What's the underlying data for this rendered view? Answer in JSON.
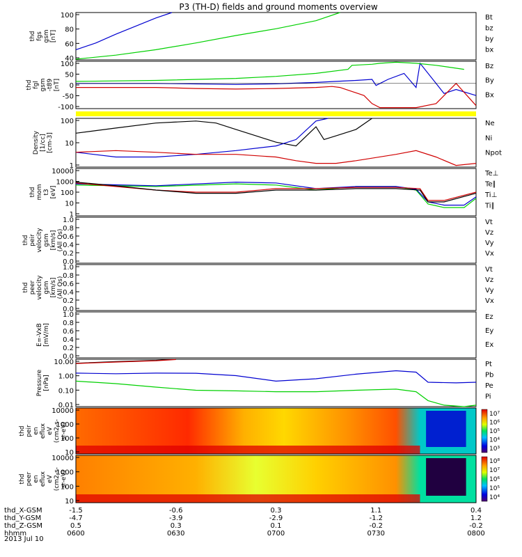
{
  "title": "P3 (TH-D) fields and ground moments overview",
  "date_label": "2013 Jul 10",
  "colors": {
    "black": "#000000",
    "red": "#d00000",
    "green": "#00d000",
    "blue": "#0000d0",
    "yellow": "#ffff00"
  },
  "orbit_rows": [
    {
      "label": "thd_X-GSM",
      "values": [
        "-1.5",
        "-0.6",
        "0.3",
        "1.1",
        "0.4"
      ]
    },
    {
      "label": "thd_Y-GSM",
      "values": [
        "-4.7",
        "-3.9",
        "-2.9",
        "-1.2",
        "1.2"
      ]
    },
    {
      "label": "thd_Z-GSM",
      "values": [
        "0.5",
        "0.3",
        "0.1",
        "-0.2",
        "-0.2"
      ]
    },
    {
      "label": "hhmm",
      "values": [
        "0600",
        "0630",
        "0700",
        "0730",
        "0800"
      ]
    }
  ],
  "chart_data": [
    {
      "id": "fgs",
      "type": "line",
      "ylabel": [
        "thd",
        "fgs",
        "gsm",
        "[nT]"
      ],
      "yticks": [
        "100",
        "80",
        "60",
        "40"
      ],
      "ylim": [
        30,
        100
      ],
      "legend": [
        {
          "name": "Bt",
          "color": "black"
        },
        {
          "name": "bz",
          "color": "red"
        },
        {
          "name": "by",
          "color": "green"
        },
        {
          "name": "bx",
          "color": "blue"
        }
      ],
      "series": [
        {
          "name": "bx",
          "color": "blue",
          "x": [
            0,
            0.05,
            0.1,
            0.15,
            0.2,
            0.24
          ],
          "y": [
            45,
            55,
            68,
            80,
            92,
            100
          ]
        },
        {
          "name": "by",
          "color": "green",
          "x": [
            0,
            0.1,
            0.2,
            0.3,
            0.4,
            0.5,
            0.6,
            0.66
          ],
          "y": [
            31,
            37,
            45,
            55,
            66,
            76,
            88,
            100
          ]
        }
      ]
    },
    {
      "id": "fgl",
      "type": "line",
      "ylabel": [
        "thd",
        "fgl",
        "gsm",
        "-t89",
        "[nT]"
      ],
      "yticks": [
        "100",
        "50",
        "0",
        "-50",
        "-100"
      ],
      "ylim": [
        -125,
        110
      ],
      "legend": [
        {
          "name": "Bz",
          "color": "red"
        },
        {
          "name": "By",
          "color": "green"
        },
        {
          "name": "Bx",
          "color": "blue"
        }
      ],
      "series": [
        {
          "name": "Bx",
          "color": "blue",
          "x": [
            0,
            0.2,
            0.4,
            0.5,
            0.6,
            0.65,
            0.7,
            0.74,
            0.75,
            0.78,
            0.82,
            0.85,
            0.86,
            0.9,
            0.92,
            0.95,
            1.0
          ],
          "y": [
            0,
            0,
            -5,
            -2,
            5,
            10,
            15,
            20,
            -10,
            20,
            50,
            -20,
            100,
            0,
            -50,
            -30,
            -60
          ]
        },
        {
          "name": "By",
          "color": "green",
          "x": [
            0,
            0.2,
            0.4,
            0.5,
            0.6,
            0.68,
            0.69,
            0.74,
            0.76,
            0.8,
            0.85,
            0.9,
            0.97
          ],
          "y": [
            10,
            15,
            25,
            35,
            50,
            70,
            90,
            95,
            100,
            105,
            100,
            90,
            70
          ]
        },
        {
          "name": "Bz",
          "color": "red",
          "x": [
            0,
            0.2,
            0.3,
            0.4,
            0.5,
            0.6,
            0.64,
            0.66,
            0.72,
            0.74,
            0.76,
            0.8,
            0.85,
            0.9,
            0.95,
            1.0
          ],
          "y": [
            -20,
            -20,
            -25,
            -28,
            -25,
            -20,
            -15,
            -20,
            -60,
            -100,
            -120,
            -120,
            -120,
            -100,
            0,
            -110
          ]
        }
      ]
    },
    {
      "id": "density",
      "type": "line",
      "log": true,
      "ylabel": [
        "Density",
        "[1/cc]",
        "[cm-3]"
      ],
      "yticks": [
        "100",
        "10",
        "1"
      ],
      "ylim": [
        1,
        200
      ],
      "legend": [
        {
          "name": "Ne",
          "color": "red"
        },
        {
          "name": "Ni",
          "color": "black"
        },
        {
          "name": "Npot",
          "color": "blue"
        }
      ],
      "series": [
        {
          "name": "Ni",
          "color": "black",
          "x": [
            0,
            0.1,
            0.2,
            0.3,
            0.35,
            0.4,
            0.45,
            0.5,
            0.55,
            0.6,
            0.62,
            0.65,
            0.7,
            0.74
          ],
          "y": [
            40,
            70,
            120,
            150,
            120,
            60,
            30,
            15,
            10,
            80,
            20,
            30,
            60,
            200
          ]
        },
        {
          "name": "Npot",
          "color": "blue",
          "x": [
            0,
            0.1,
            0.2,
            0.3,
            0.4,
            0.5,
            0.55,
            0.6,
            0.63
          ],
          "y": [
            5,
            3,
            3,
            4,
            6,
            10,
            20,
            150,
            200
          ]
        },
        {
          "name": "Ne",
          "color": "red",
          "x": [
            0,
            0.1,
            0.2,
            0.3,
            0.4,
            0.5,
            0.55,
            0.6,
            0.65,
            0.7,
            0.8,
            0.85,
            0.9,
            0.95,
            1.0
          ],
          "y": [
            5,
            6,
            5,
            4,
            4,
            3,
            2,
            1.5,
            1.5,
            2,
            4,
            6,
            3,
            1.2,
            1.5
          ]
        }
      ]
    },
    {
      "id": "temp",
      "type": "line",
      "log": true,
      "ylabel": [
        "thd",
        "mom",
        "t3",
        "[eV]"
      ],
      "yticks": [
        "10000",
        "1000",
        "100",
        "10",
        "1"
      ],
      "ylim": [
        1,
        10000
      ],
      "legend": [
        {
          "name": "Te⊥",
          "color": "red"
        },
        {
          "name": "Te∥",
          "color": "black"
        },
        {
          "name": "Ti⊥",
          "color": "blue"
        },
        {
          "name": "Ti∥",
          "color": "green"
        }
      ],
      "series": [
        {
          "name": "Ti∥",
          "color": "green",
          "x": [
            0,
            0.2,
            0.4,
            0.5,
            0.6,
            0.7,
            0.8,
            0.85,
            0.88,
            0.92,
            0.97,
            1.0
          ],
          "y": [
            400,
            300,
            500,
            400,
            150,
            300,
            300,
            150,
            10,
            5,
            5,
            30
          ]
        },
        {
          "name": "Ti⊥",
          "color": "blue",
          "x": [
            0,
            0.2,
            0.4,
            0.5,
            0.6,
            0.7,
            0.8,
            0.85,
            0.88,
            0.92,
            0.97,
            1.0
          ],
          "y": [
            500,
            350,
            700,
            600,
            200,
            300,
            300,
            180,
            15,
            8,
            8,
            40
          ]
        },
        {
          "name": "Te⊥",
          "color": "red",
          "x": [
            0,
            0.1,
            0.2,
            0.3,
            0.4,
            0.5,
            0.6,
            0.7,
            0.8,
            0.86,
            0.88,
            0.92,
            1.0
          ],
          "y": [
            600,
            300,
            150,
            100,
            100,
            200,
            200,
            250,
            250,
            200,
            20,
            20,
            100
          ]
        },
        {
          "name": "Te∥",
          "color": "black",
          "x": [
            0,
            0.1,
            0.2,
            0.3,
            0.4,
            0.5,
            0.6,
            0.7,
            0.8,
            0.86,
            0.88,
            0.92,
            1.0
          ],
          "y": [
            700,
            350,
            150,
            80,
            80,
            150,
            150,
            200,
            200,
            150,
            15,
            15,
            80
          ]
        }
      ]
    },
    {
      "id": "vel_ions",
      "type": "line",
      "ylabel": [
        "thd",
        "peir",
        "velocity",
        "gsm",
        "[km/s]",
        "(All Qs)"
      ],
      "yticks": [
        "1.0",
        "0.8",
        "0.6",
        "0.4",
        "0.2",
        "0.0"
      ],
      "ylim": [
        0,
        1
      ],
      "legend": [
        {
          "name": "Vt",
          "color": "black"
        },
        {
          "name": "Vz",
          "color": "red"
        },
        {
          "name": "Vy",
          "color": "green"
        },
        {
          "name": "Vx",
          "color": "blue"
        }
      ],
      "series": []
    },
    {
      "id": "vel_elec",
      "type": "line",
      "ylabel": [
        "thd",
        "peer",
        "velocity",
        "gsm",
        "[km/s]",
        "(All Qs)"
      ],
      "yticks": [
        "1.0",
        "0.8",
        "0.6",
        "0.4",
        "0.2",
        "0.0"
      ],
      "ylim": [
        0,
        1
      ],
      "legend": [
        {
          "name": "Vt",
          "color": "black"
        },
        {
          "name": "Vz",
          "color": "red"
        },
        {
          "name": "Vy",
          "color": "green"
        },
        {
          "name": "Vx",
          "color": "blue"
        }
      ],
      "series": []
    },
    {
      "id": "efield",
      "type": "line",
      "ylabel": [
        "E=-VxB",
        "[mV/m]"
      ],
      "yticks": [
        "1.0",
        "0.8",
        "0.6",
        "0.4",
        "0.2",
        "0.0"
      ],
      "ylim": [
        0,
        1
      ],
      "legend": [
        {
          "name": "Ez",
          "color": "red"
        },
        {
          "name": "Ey",
          "color": "green"
        },
        {
          "name": "Ex",
          "color": "blue"
        }
      ],
      "series": []
    },
    {
      "id": "pressure",
      "type": "line",
      "log": true,
      "ylabel": [
        "Pressure",
        "[nPa]"
      ],
      "yticks": [
        "10.00",
        "1.00",
        "0.10",
        "0.01"
      ],
      "ylim": [
        0.003,
        40
      ],
      "legend": [
        {
          "name": "Pt",
          "color": "black"
        },
        {
          "name": "Pb",
          "color": "red"
        },
        {
          "name": "Pe",
          "color": "green"
        },
        {
          "name": "Pi",
          "color": "blue"
        }
      ],
      "series": [
        {
          "name": "Pt",
          "color": "black",
          "x": [
            0,
            0.1,
            0.2,
            0.25
          ],
          "y": [
            18,
            25,
            32,
            40
          ]
        },
        {
          "name": "Pb",
          "color": "red",
          "x": [
            0,
            0.1,
            0.2,
            0.25
          ],
          "y": [
            17,
            23,
            30,
            38
          ]
        },
        {
          "name": "Pi",
          "color": "blue",
          "x": [
            0,
            0.1,
            0.2,
            0.3,
            0.4,
            0.5,
            0.6,
            0.7,
            0.8,
            0.85,
            0.88,
            0.95,
            1.0
          ],
          "y": [
            2.5,
            2.2,
            2.5,
            2.4,
            1.5,
            0.5,
            0.8,
            2,
            4,
            3,
            0.4,
            0.35,
            0.4
          ]
        },
        {
          "name": "Pe",
          "color": "green",
          "x": [
            0,
            0.1,
            0.2,
            0.3,
            0.4,
            0.5,
            0.6,
            0.7,
            0.8,
            0.85,
            0.88,
            0.92,
            0.97,
            1.0
          ],
          "y": [
            0.5,
            0.3,
            0.15,
            0.08,
            0.07,
            0.06,
            0.06,
            0.08,
            0.1,
            0.06,
            0.01,
            0.004,
            0.003,
            0.004
          ]
        }
      ]
    },
    {
      "id": "ion_spec",
      "type": "heatmap",
      "ylabel": [
        "thd",
        "peir",
        "en",
        "eflux",
        "eV",
        "(cm2-s-",
        "sr-eV)"
      ],
      "yticks": [
        "10000",
        "1000",
        "100",
        "10"
      ],
      "colorbar_ticks": [
        "10⁷",
        "10⁶",
        "10⁵",
        "10⁴",
        "10³"
      ]
    },
    {
      "id": "elec_spec",
      "type": "heatmap",
      "ylabel": [
        "thd",
        "peer",
        "en",
        "eflux",
        "eV",
        "(cm2-s-",
        "sr-eV)"
      ],
      "yticks": [
        "10000",
        "1000",
        "100",
        "10"
      ],
      "colorbar_ticks": [
        "10⁸",
        "10⁷",
        "10⁶",
        "10⁵",
        "10⁴"
      ]
    }
  ]
}
